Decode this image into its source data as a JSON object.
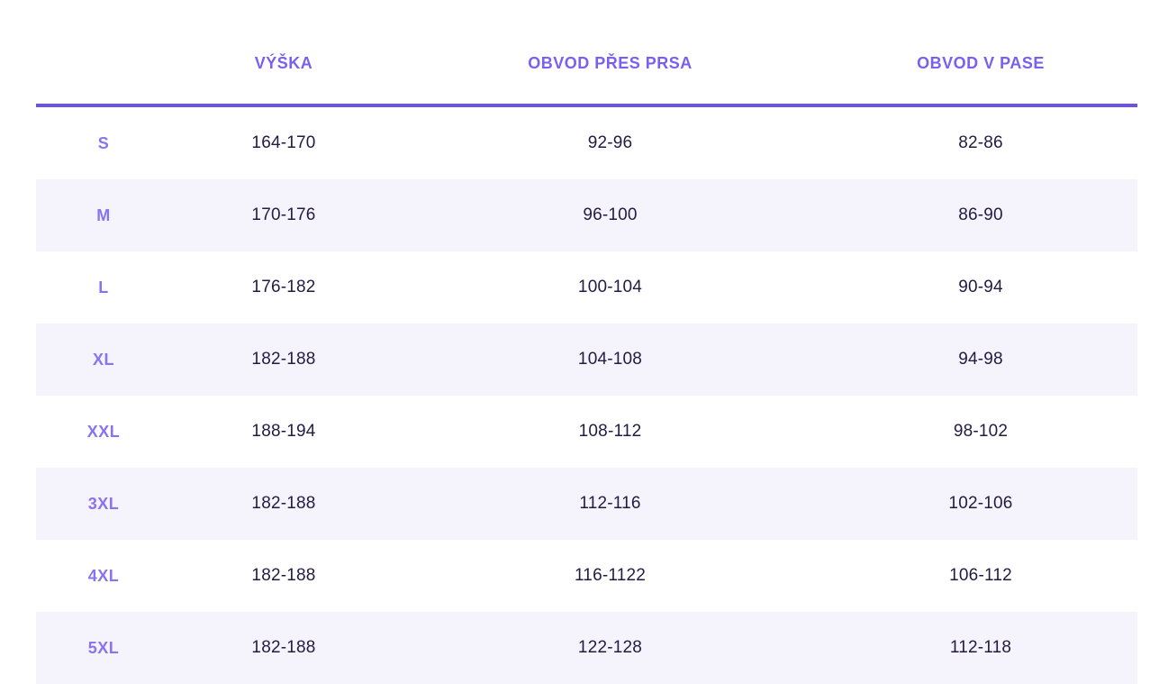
{
  "colors": {
    "header_text": "#7a5ff0",
    "size_label_text": "#8973f2",
    "value_text": "#231b41",
    "divider": "#6d52e6",
    "alt_row_background": "#f5f3fb",
    "page_background": "#ffffff"
  },
  "size_chart": {
    "columns": {
      "size": "",
      "height": "VÝŠKA",
      "chest": "OBVOD PŘES PRSA",
      "waist": "OBVOD V PASE"
    },
    "rows": [
      {
        "size": "S",
        "height": "164-170",
        "chest": "92-96",
        "waist": "82-86"
      },
      {
        "size": "M",
        "height": "170-176",
        "chest": "96-100",
        "waist": "86-90"
      },
      {
        "size": "L",
        "height": "176-182",
        "chest": "100-104",
        "waist": "90-94"
      },
      {
        "size": "XL",
        "height": "182-188",
        "chest": "104-108",
        "waist": "94-98"
      },
      {
        "size": "XXL",
        "height": "188-194",
        "chest": "108-112",
        "waist": "98-102"
      },
      {
        "size": "3XL",
        "height": "182-188",
        "chest": "112-116",
        "waist": "102-106"
      },
      {
        "size": "4XL",
        "height": "182-188",
        "chest": "116-1122",
        "waist": "106-112"
      },
      {
        "size": "5XL",
        "height": "182-188",
        "chest": "122-128",
        "waist": "112-118"
      }
    ]
  }
}
